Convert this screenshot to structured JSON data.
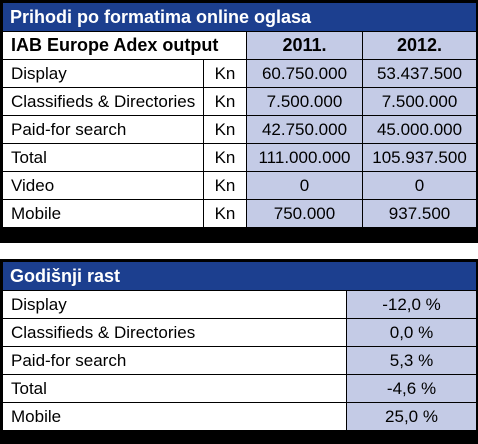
{
  "table1": {
    "title": "Prihodi po formatima online oglasa",
    "header": {
      "label": "IAB Europe Adex output",
      "year1": "2011.",
      "year2": "2012."
    },
    "rows": [
      {
        "label": "Display",
        "unit": "Kn",
        "v2011": "60.750.000",
        "v2012": "53.437.500"
      },
      {
        "label": "Classifieds & Directories",
        "unit": "Kn",
        "v2011": "7.500.000",
        "v2012": "7.500.000"
      },
      {
        "label": "Paid-for search",
        "unit": "Kn",
        "v2011": "42.750.000",
        "v2012": "45.000.000"
      },
      {
        "label": "Total",
        "unit": "Kn",
        "v2011": "111.000.000",
        "v2012": "105.937.500"
      },
      {
        "label": "Video",
        "unit": "Kn",
        "v2011": "0",
        "v2012": "0"
      },
      {
        "label": "Mobile",
        "unit": "Kn",
        "v2011": "750.000",
        "v2012": "937.500"
      }
    ]
  },
  "table2": {
    "title": "Godišnji rast",
    "rows": [
      {
        "label": "Display",
        "value": "-12,0 %"
      },
      {
        "label": "Classifieds & Directories",
        "value": "0,0 %"
      },
      {
        "label": "Paid-for search",
        "value": "5,3 %"
      },
      {
        "label": "Total",
        "value": "-4,6 %"
      },
      {
        "label": "Mobile",
        "value": "25,0 %"
      }
    ]
  }
}
